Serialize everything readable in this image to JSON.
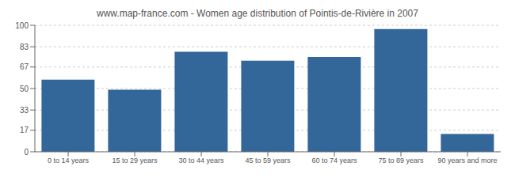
{
  "chart_data": {
    "type": "bar",
    "title": "www.map-france.com - Women age distribution of Pointis-de-Rivière in 2007",
    "categories": [
      "0 to 14 years",
      "15 to 29 years",
      "30 to 44 years",
      "45 to 59 years",
      "60 to 74 years",
      "75 to 89 years",
      "90 years and more"
    ],
    "values": [
      57,
      49,
      79,
      72,
      75,
      97,
      14
    ],
    "color": "#336699",
    "ylim": [
      0,
      100
    ],
    "yticks": [
      0,
      17,
      33,
      50,
      67,
      83,
      100
    ],
    "grid": true
  }
}
